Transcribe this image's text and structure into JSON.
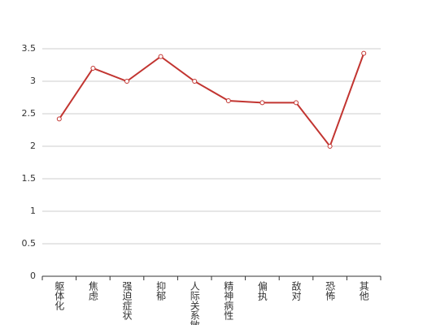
{
  "chart_data": {
    "type": "line",
    "categories": [
      "躯体化",
      "焦虑",
      "强迫症状",
      "抑郁",
      "人际关系敏感",
      "精神病性",
      "偏执",
      "敌对",
      "恐怖",
      "其他"
    ],
    "series": [
      {
        "color": "#c23531",
        "values": [
          2.42,
          3.2,
          3.0,
          3.38,
          3.0,
          2.7,
          2.67,
          2.67,
          2.0,
          3.43
        ]
      }
    ],
    "ylim": [
      0,
      3.5
    ],
    "yticks": [
      0,
      0.5,
      1,
      1.5,
      2,
      2.5,
      3,
      3.5
    ],
    "grid": true
  }
}
